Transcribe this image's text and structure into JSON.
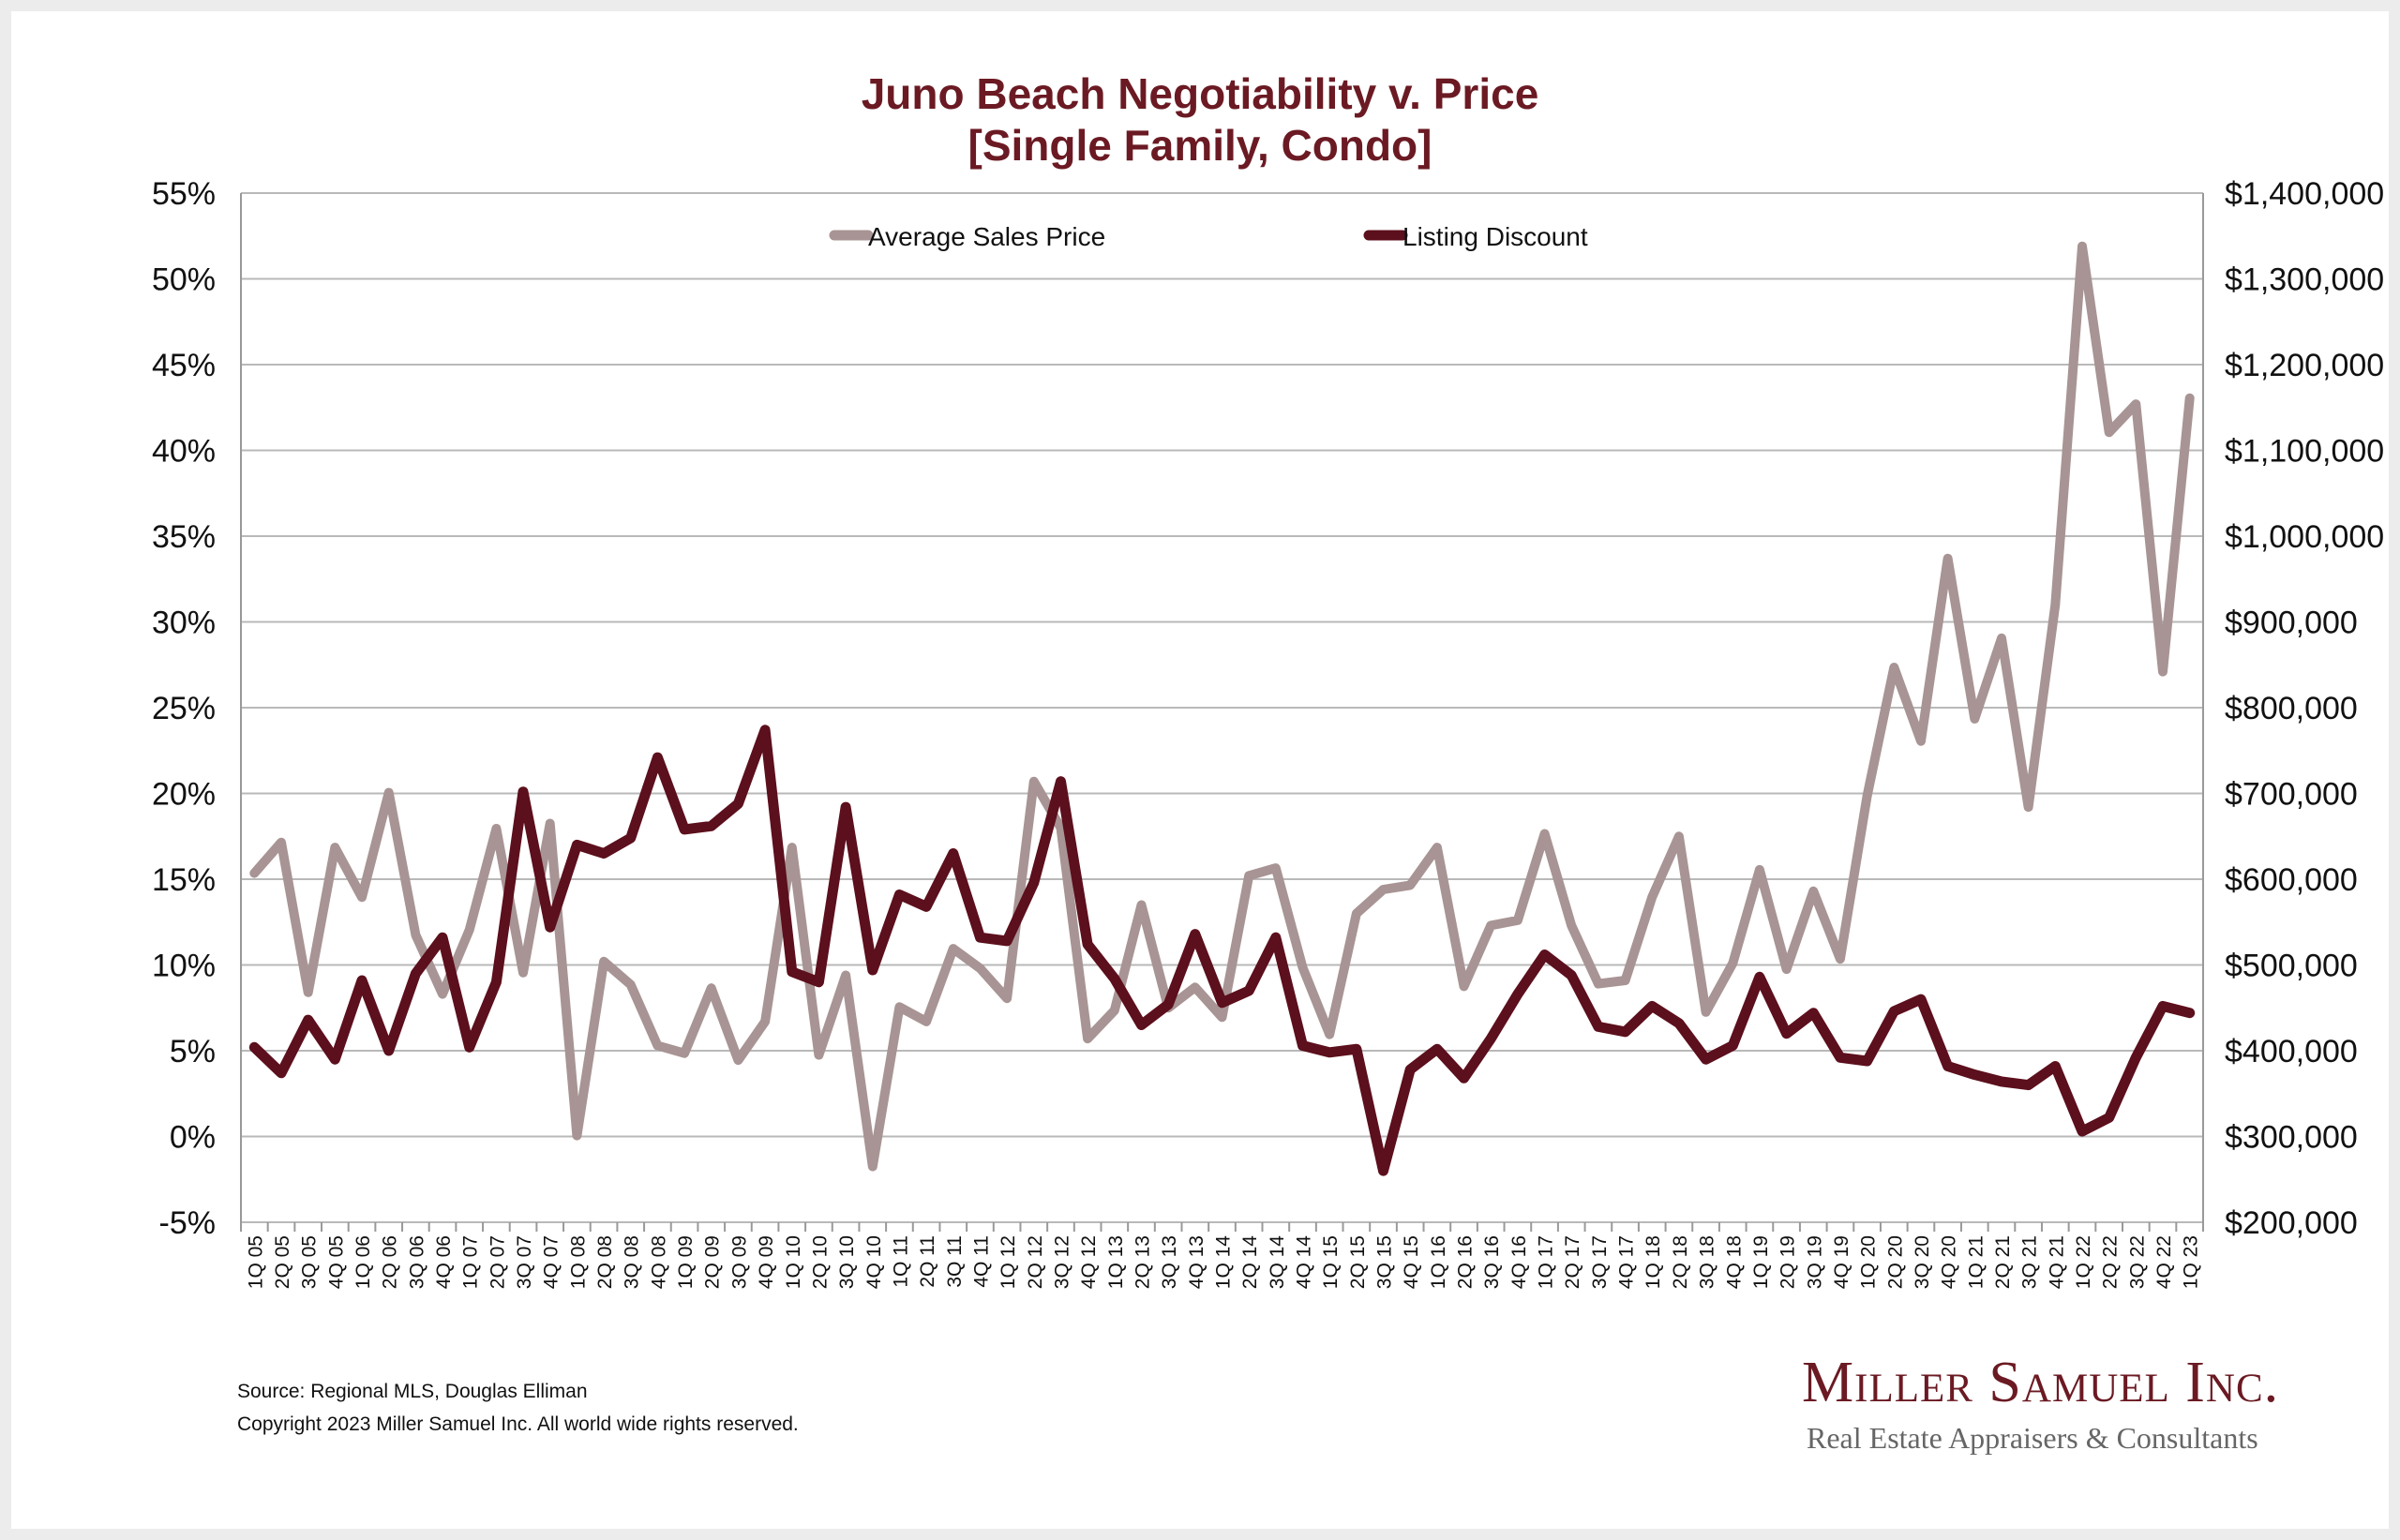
{
  "chart_data": {
    "type": "line",
    "title": "Juno Beach Negotiability v. Price",
    "subtitle": "[Single Family, Condo]",
    "left_axis": {
      "ticks": [
        "55%",
        "50%",
        "45%",
        "40%",
        "35%",
        "30%",
        "25%",
        "20%",
        "15%",
        "10%",
        "5%",
        "0%",
        "-5%"
      ],
      "ylim": [
        -5,
        55
      ]
    },
    "right_axis": {
      "ticks": [
        "$1,400,000",
        "$1,300,000",
        "$1,200,000",
        "$1,100,000",
        "$1,000,000",
        "$900,000",
        "$800,000",
        "$700,000",
        "$600,000",
        "$500,000",
        "$400,000",
        "$300,000",
        "$200,000"
      ],
      "ylim": [
        200000,
        1400000
      ]
    },
    "grid": true,
    "legend_position": "top",
    "categories": [
      "1Q 05",
      "2Q 05",
      "3Q 05",
      "4Q 05",
      "1Q 06",
      "2Q 06",
      "3Q 06",
      "4Q 06",
      "1Q 07",
      "2Q 07",
      "3Q 07",
      "4Q 07",
      "1Q 08",
      "2Q 08",
      "3Q 08",
      "4Q 08",
      "1Q 09",
      "2Q 09",
      "3Q 09",
      "4Q 09",
      "1Q 10",
      "2Q 10",
      "3Q 10",
      "4Q 10",
      "1Q 11",
      "2Q 11",
      "3Q 11",
      "4Q 11",
      "1Q 12",
      "2Q 12",
      "3Q 12",
      "4Q 12",
      "1Q 13",
      "2Q 13",
      "3Q 13",
      "4Q 13",
      "1Q 14",
      "2Q 14",
      "3Q 14",
      "4Q 14",
      "1Q 15",
      "2Q 15",
      "3Q 15",
      "4Q 15",
      "1Q 16",
      "2Q 16",
      "3Q 16",
      "4Q 16",
      "1Q 17",
      "2Q 17",
      "3Q 17",
      "4Q 17",
      "1Q 18",
      "2Q 18",
      "3Q 18",
      "4Q 18",
      "1Q 19",
      "2Q 19",
      "3Q 19",
      "4Q 19",
      "1Q 20",
      "2Q 20",
      "3Q 20",
      "4Q 20",
      "1Q 21",
      "2Q 21",
      "3Q 21",
      "4Q 21",
      "1Q 22",
      "2Q 22",
      "3Q 22",
      "4Q 22",
      "1Q 23"
    ],
    "series": [
      {
        "name": "Average Sales Price",
        "axis": "right",
        "color": "#a89494",
        "values": [
          607000,
          643000,
          468000,
          637000,
          579000,
          701000,
          535000,
          466000,
          541000,
          659000,
          491000,
          665000,
          301000,
          504000,
          477000,
          406000,
          397000,
          473000,
          389000,
          434000,
          637000,
          395000,
          488000,
          265000,
          451000,
          434000,
          519000,
          496000,
          461000,
          714000,
          660000,
          414000,
          447000,
          570000,
          450000,
          474000,
          439000,
          604000,
          613000,
          497000,
          419000,
          560000,
          588000,
          593000,
          637000,
          475000,
          546000,
          552000,
          653000,
          546000,
          478000,
          482000,
          579000,
          650000,
          445000,
          502000,
          611000,
          495000,
          586000,
          507000,
          697000,
          847000,
          761000,
          974000,
          787000,
          881000,
          684000,
          920000,
          1338000,
          1121000,
          1154000,
          842000,
          1161000
        ]
      },
      {
        "name": "Listing Discount",
        "axis": "left",
        "color": "#5c0f1c",
        "values": [
          5.2,
          3.7,
          6.8,
          4.5,
          9.1,
          5.0,
          9.5,
          11.6,
          5.2,
          9.0,
          20.1,
          12.2,
          17.0,
          16.5,
          17.4,
          22.1,
          17.9,
          18.1,
          19.4,
          23.7,
          9.6,
          9.0,
          19.2,
          9.7,
          14.1,
          13.4,
          16.5,
          11.6,
          11.4,
          14.8,
          20.7,
          11.2,
          9.2,
          6.5,
          7.7,
          11.8,
          7.8,
          8.5,
          11.6,
          5.3,
          4.9,
          5.1,
          -2.0,
          3.9,
          5.1,
          3.4,
          5.7,
          8.3,
          10.6,
          9.4,
          6.4,
          6.1,
          7.6,
          6.6,
          4.5,
          5.3,
          9.3,
          6.0,
          7.2,
          4.6,
          4.4,
          7.3,
          8.0,
          4.1,
          3.6,
          3.2,
          3.0,
          4.1,
          0.3,
          1.1,
          4.6,
          7.6,
          7.2
        ]
      }
    ]
  },
  "footer": {
    "source": "Source: Regional MLS, Douglas Elliman",
    "copyright": "Copyright 2023 Miller Samuel Inc.  All world wide rights reserved."
  },
  "brand": {
    "name": "Miller Samuel Inc.",
    "tagline": "Real Estate Appraisers & Consultants"
  }
}
